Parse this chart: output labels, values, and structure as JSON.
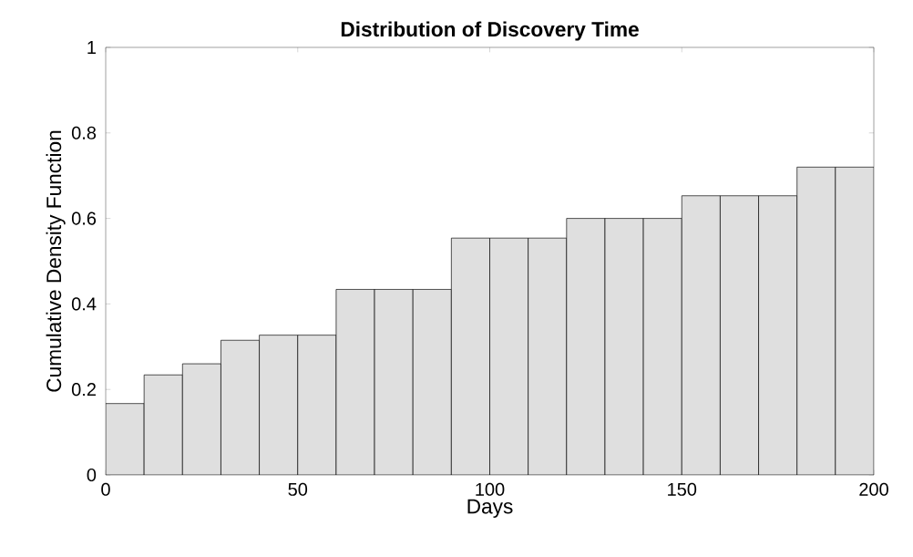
{
  "chart_data": {
    "type": "histogram",
    "title": "Distribution of Discovery Time",
    "xlabel": "Days",
    "ylabel": "Cumulative Density Function",
    "bins": [
      0,
      10,
      20,
      30,
      40,
      50,
      60,
      70,
      80,
      90,
      100,
      110,
      120,
      130,
      140,
      150,
      160,
      170,
      180,
      190,
      200
    ],
    "values": [
      0.167,
      0.234,
      0.26,
      0.315,
      0.327,
      0.327,
      0.434,
      0.434,
      0.434,
      0.554,
      0.554,
      0.554,
      0.6,
      0.6,
      0.6,
      0.653,
      0.653,
      0.653,
      0.72,
      0.72
    ],
    "color": "#dfdfdf",
    "xlim": [
      0,
      200
    ],
    "ylim": [
      0,
      1
    ],
    "xticks": [
      0,
      50,
      100,
      150,
      200
    ],
    "yticks": [
      0,
      {
        "value": 0.2,
        "label": "0.2"
      },
      {
        "value": 0.4,
        "label": "0.4"
      },
      {
        "value": 0.6,
        "label": "0.6"
      },
      {
        "value": 0.8,
        "label": "0.8"
      },
      1
    ],
    "grid": false
  }
}
